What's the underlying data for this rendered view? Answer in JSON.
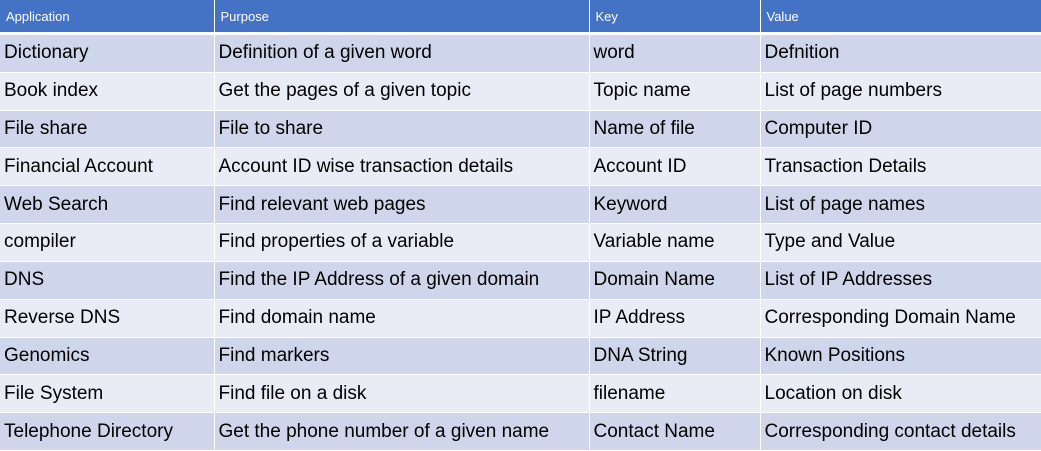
{
  "headers": [
    "Application",
    "Purpose",
    "Key",
    "Value"
  ],
  "rows": [
    [
      "Dictionary",
      "Definition of a given word",
      "word",
      "Defnition"
    ],
    [
      "Book index",
      "Get the pages of a given topic",
      "Topic name",
      "List of page numbers"
    ],
    [
      "File share",
      "File to share",
      "Name of file",
      "Computer ID"
    ],
    [
      "Financial Account",
      "Account ID wise transaction details",
      "Account ID",
      "Transaction Details"
    ],
    [
      "Web Search",
      "Find relevant web pages",
      "Keyword",
      "List of page names"
    ],
    [
      "compiler",
      "Find properties of a variable",
      "Variable name",
      "Type and Value"
    ],
    [
      "DNS",
      "Find the IP Address of a given domain",
      "Domain Name",
      "List of IP Addresses"
    ],
    [
      "Reverse DNS",
      "Find domain name",
      "IP Address",
      "Corresponding Domain Name"
    ],
    [
      "Genomics",
      "Find markers",
      "DNA String",
      "Known Positions"
    ],
    [
      "File System",
      "Find file on a disk",
      "filename",
      "Location on disk"
    ],
    [
      "Telephone Directory",
      "Get the phone number of a given name",
      "Contact Name",
      "Corresponding contact details"
    ]
  ]
}
